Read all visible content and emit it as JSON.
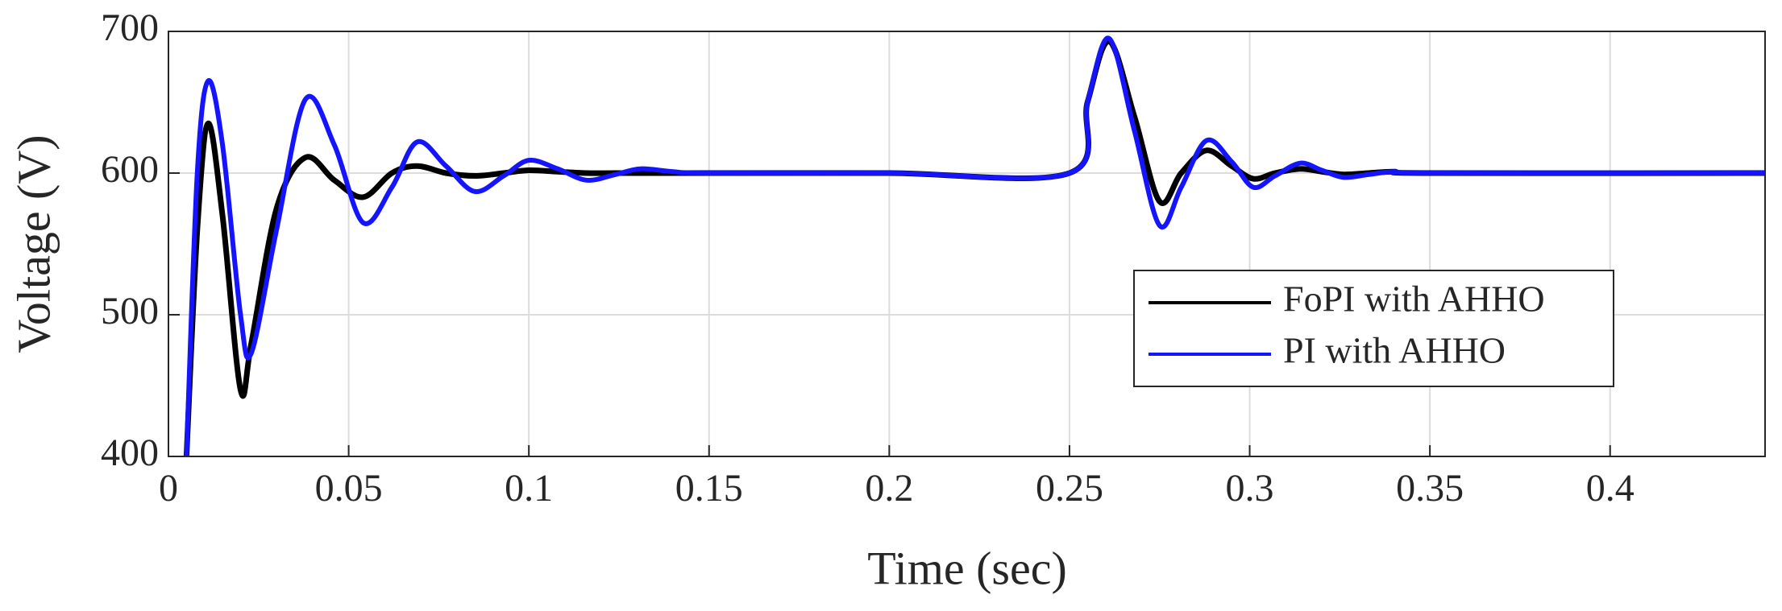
{
  "chart_data": {
    "type": "line",
    "x_label": "Time (sec)",
    "y_label": "Voltage (V)",
    "x": [
      0.005,
      0.008,
      0.011,
      0.015,
      0.02,
      0.023,
      0.03,
      0.038,
      0.046,
      0.054,
      0.062,
      0.069,
      0.077,
      0.085,
      0.093,
      0.1,
      0.108,
      0.116,
      0.124,
      0.131,
      0.14,
      0.15,
      0.2,
      0.25,
      0.255,
      0.261,
      0.268,
      0.275,
      0.281,
      0.288,
      0.295,
      0.301,
      0.307,
      0.314,
      0.32,
      0.326,
      0.333,
      0.34,
      0.35,
      0.443
    ],
    "series": [
      {
        "name": "FoPI with AHHO",
        "color": "#000000",
        "values": [
          400,
          560,
          635,
          570,
          447,
          480,
          575,
          611,
          595,
          583,
          600,
          605,
          600,
          598,
          600,
          602,
          601,
          600,
          600,
          600,
          600,
          600,
          600,
          600,
          650,
          693,
          640,
          580,
          600,
          616,
          605,
          596,
          600,
          603,
          601,
          599,
          600,
          601,
          600,
          600
        ]
      },
      {
        "name": "PI with AHHO",
        "color": "#1414ff",
        "values": [
          400,
          600,
          665,
          620,
          500,
          473,
          560,
          652,
          620,
          565,
          590,
          622,
          605,
          587,
          598,
          609,
          603,
          595,
          599,
          603,
          601,
          600,
          600,
          600,
          650,
          695,
          630,
          563,
          590,
          623,
          608,
          590,
          598,
          607,
          602,
          597,
          599,
          601,
          600,
          600
        ]
      }
    ],
    "xlim": [
      0,
      0.443
    ],
    "ylim": [
      400,
      700
    ],
    "xticks": [
      0,
      0.05,
      0.1,
      0.15,
      0.2,
      0.25,
      0.3,
      0.35,
      0.4
    ],
    "yticks": [
      400,
      500,
      600,
      700
    ],
    "grid": true,
    "legend": "center right"
  }
}
